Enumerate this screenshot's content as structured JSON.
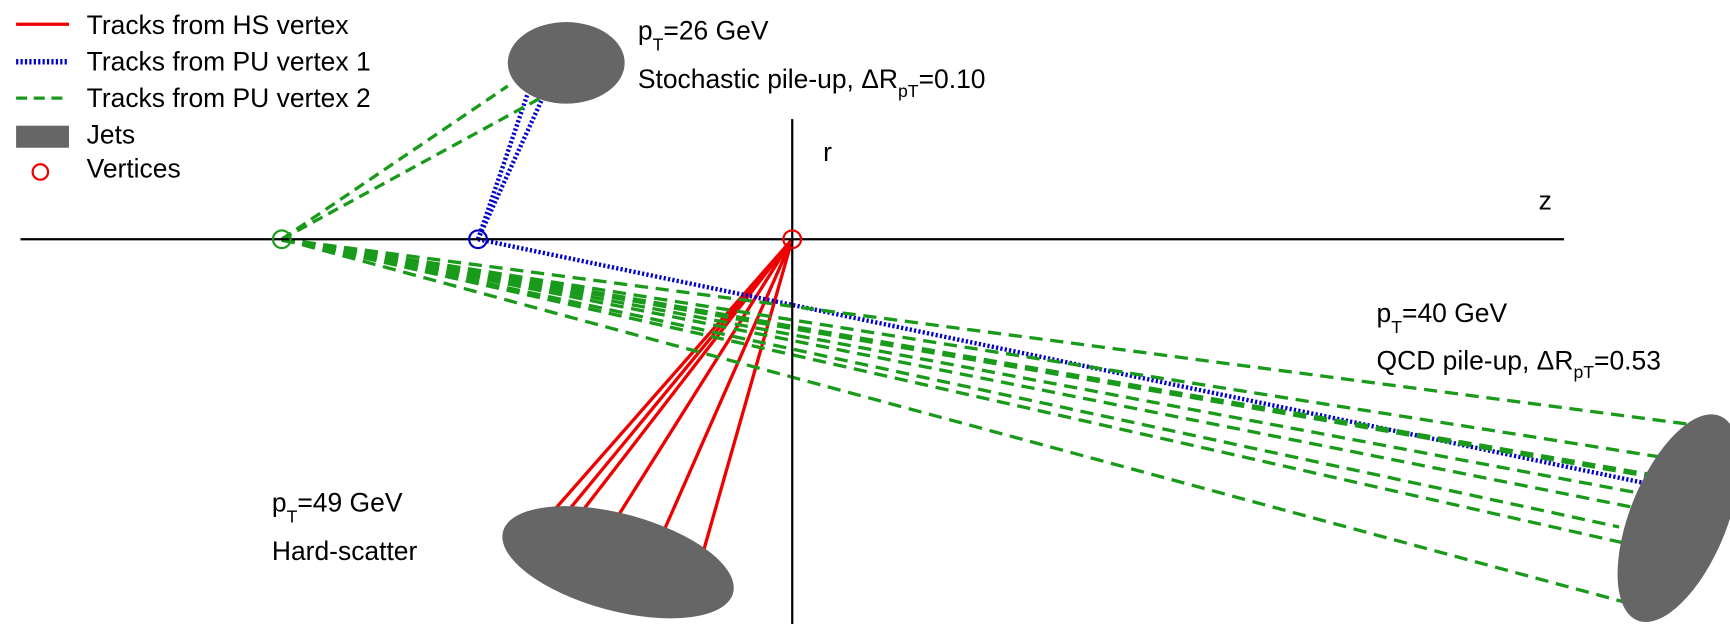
{
  "legend": {
    "items": [
      "Tracks from HS vertex",
      "Tracks from PU vertex 1",
      "Tracks from PU vertex 2",
      "Jets",
      "Vertices"
    ]
  },
  "axes": {
    "r": "r",
    "z": "z"
  },
  "jets": [
    {
      "line1": {
        "main": "p",
        "sub": "T",
        "rest": "=26 GeV"
      },
      "line2": {
        "main": "Stochastic pile-up, ΔR",
        "sub": "pT",
        "rest": "=0.10"
      }
    },
    {
      "line1": {
        "main": "p",
        "sub": "T",
        "rest": "=40 GeV"
      },
      "line2": {
        "main": "QCD pile-up, ΔR",
        "sub": "pT",
        "rest": "=0.53"
      }
    },
    {
      "line1": {
        "main": "p",
        "sub": "T",
        "rest": "=49 GeV"
      },
      "line2": {
        "main": "Hard-scatter"
      }
    }
  ]
}
